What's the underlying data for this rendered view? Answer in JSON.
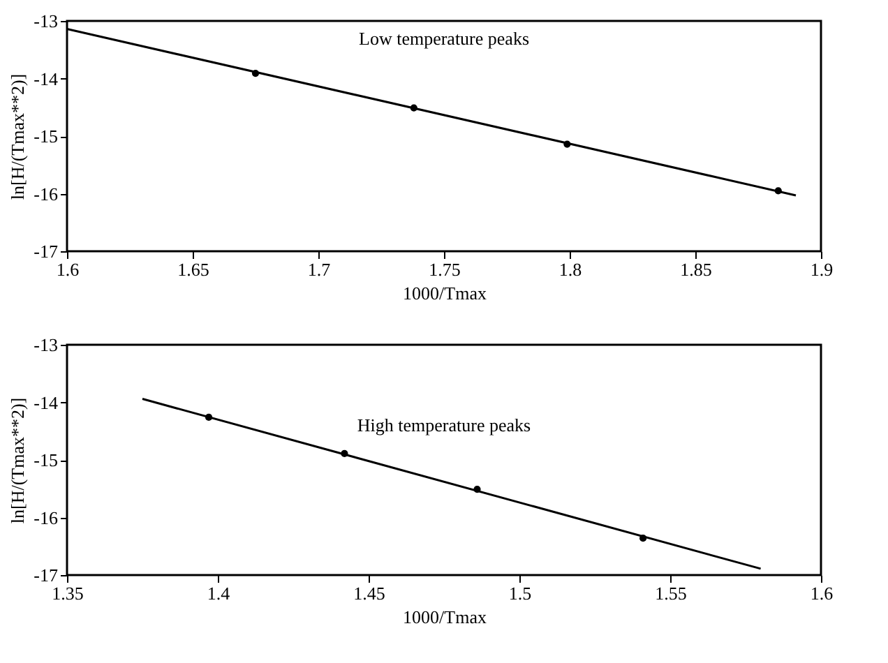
{
  "chart_data": [
    {
      "type": "scatter",
      "xlabel": "1000/Tmax",
      "ylabel": "ln[H/(Tmax**2)]",
      "annotations": [
        "Low temperature peaks"
      ],
      "xlim": [
        1.6,
        1.9
      ],
      "ylim": [
        -17,
        -13
      ],
      "xticks": [
        1.6,
        1.65,
        1.7,
        1.75,
        1.8,
        1.85,
        1.9
      ],
      "yticks": [
        -17,
        -16,
        -15,
        -14,
        -13
      ],
      "grid": false,
      "series": [
        {
          "marker": "circle",
          "color": "#000000",
          "x": [
            1.675,
            1.738,
            1.799,
            1.883
          ],
          "values": [
            -13.91,
            -14.51,
            -15.14,
            -15.95
          ]
        },
        {
          "type": "line",
          "line_style": "solid",
          "color": "#000000",
          "x": [
            1.6,
            1.89
          ],
          "values": [
            -13.14,
            -16.03
          ]
        }
      ]
    },
    {
      "type": "scatter",
      "xlabel": "1000/Tmax",
      "ylabel": "ln[H/(Tmax**2)]",
      "annotations": [
        "High temperature peaks"
      ],
      "xlim": [
        1.35,
        1.6
      ],
      "ylim": [
        -17,
        -13
      ],
      "xticks": [
        1.35,
        1.4,
        1.45,
        1.5,
        1.55,
        1.6
      ],
      "yticks": [
        -17,
        -16,
        -15,
        -14,
        -13
      ],
      "grid": false,
      "series": [
        {
          "marker": "circle",
          "color": "#000000",
          "x": [
            1.397,
            1.442,
            1.486,
            1.541
          ],
          "values": [
            -14.26,
            -14.89,
            -15.51,
            -16.36
          ]
        },
        {
          "type": "line",
          "line_style": "solid",
          "color": "#000000",
          "x": [
            1.375,
            1.58
          ],
          "values": [
            -13.94,
            -16.89
          ]
        }
      ]
    }
  ]
}
